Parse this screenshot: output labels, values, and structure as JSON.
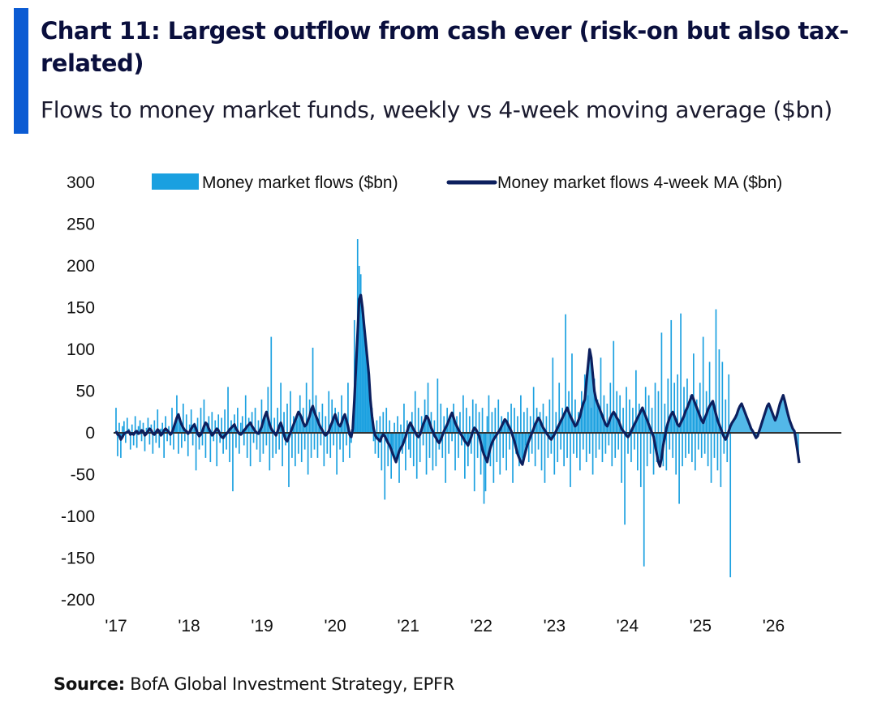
{
  "header": {
    "title": "Chart 11: Largest outflow from cash ever (risk-on but also tax-related)",
    "subtitle": "Flows to money market funds, weekly vs 4-week moving average ($bn)"
  },
  "footer": {
    "source_label": "Source:",
    "source_text": " BofA Global Investment Strategy, EPFR"
  },
  "colors": {
    "accent": "#0b5bd3",
    "bars": "#1aa0e0",
    "ma_line": "#0c1f5e",
    "zero_line": "#333333"
  },
  "chart_data": {
    "type": "bar",
    "legend_position": "top",
    "grid": false,
    "ylim": [
      -200,
      300
    ],
    "yticks": [
      300,
      250,
      200,
      150,
      100,
      50,
      0,
      -50,
      -100,
      -150,
      -200
    ],
    "xtick_labels": [
      "'17",
      "'18",
      "'19",
      "'20",
      "'21",
      "'22",
      "'23",
      "'24",
      "'25",
      "'26"
    ],
    "x_start": "2017-01",
    "frequency": "weekly",
    "series": [
      {
        "name": "Money market flows ($bn)",
        "kind": "bar",
        "values": [
          30,
          -28,
          12,
          -30,
          8,
          14,
          -12,
          18,
          5,
          -20,
          10,
          -15,
          20,
          -18,
          8,
          15,
          -10,
          12,
          -22,
          6,
          18,
          -14,
          10,
          -25,
          15,
          -12,
          28,
          -18,
          5,
          12,
          -30,
          20,
          -10,
          8,
          -15,
          30,
          -20,
          12,
          45,
          -25,
          15,
          -18,
          35,
          -10,
          22,
          -28,
          10,
          28,
          -15,
          12,
          -45,
          18,
          -20,
          30,
          -15,
          40,
          -30,
          12,
          20,
          -35,
          25,
          -10,
          15,
          -40,
          22,
          -12,
          18,
          -25,
          28,
          -20,
          55,
          -35,
          15,
          -70,
          22,
          -18,
          30,
          -25,
          12,
          20,
          -15,
          45,
          -30,
          18,
          -40,
          25,
          -12,
          30,
          -20,
          15,
          -35,
          40,
          -25,
          20,
          -15,
          55,
          -45,
          115,
          -30,
          18,
          -25,
          30,
          -20,
          60,
          -40,
          25,
          -15,
          35,
          -65,
          50,
          -30,
          20,
          -40,
          15,
          -25,
          45,
          -35,
          30,
          -20,
          60,
          -50,
          40,
          -30,
          102,
          -20,
          45,
          -30,
          25,
          -15,
          35,
          -40,
          20,
          -25,
          50,
          -30,
          40,
          -15,
          30,
          -50,
          25,
          -20,
          45,
          -35,
          20,
          -15,
          60,
          -30,
          -12,
          20,
          135,
          60,
          232,
          200,
          190,
          140,
          120,
          100,
          85,
          60,
          45,
          30,
          -10,
          -25,
          15,
          -30,
          20,
          -45,
          25,
          -80,
          30,
          -40,
          15,
          -55,
          -20,
          12,
          -35,
          20,
          -60,
          10,
          -25,
          35,
          -45,
          15,
          -20,
          -30,
          25,
          -40,
          50,
          -55,
          30,
          -35,
          20,
          -15,
          40,
          -50,
          60,
          -30,
          25,
          -45,
          15,
          -40,
          65,
          -20,
          35,
          -30,
          20,
          -60,
          30,
          -25,
          15,
          -10,
          35,
          -45,
          20,
          -30,
          25,
          -15,
          45,
          -55,
          30,
          -40,
          20,
          -25,
          40,
          -70,
          35,
          -30,
          25,
          -50,
          30,
          -85,
          -70,
          20,
          45,
          -40,
          25,
          -60,
          30,
          -35,
          40,
          -50,
          20,
          -30,
          15,
          -45,
          25,
          -20,
          35,
          -60,
          30,
          -25,
          20,
          -40,
          45,
          -30,
          25,
          -15,
          30,
          -35,
          20,
          -25,
          55,
          -40,
          30,
          -20,
          25,
          -45,
          35,
          -60,
          20,
          -30,
          40,
          -25,
          90,
          -50,
          25,
          -35,
          60,
          -20,
          30,
          -40,
          142,
          -30,
          50,
          -65,
          95,
          -25,
          40,
          -30,
          25,
          -45,
          50,
          -20,
          70,
          -35,
          45,
          -25,
          30,
          -50,
          65,
          -30,
          40,
          -20,
          90,
          -35,
          45,
          -25,
          35,
          -15,
          60,
          -40,
          110,
          -30,
          50,
          -20,
          45,
          -60,
          30,
          -110,
          55,
          -25,
          40,
          -35,
          30,
          -20,
          75,
          -45,
          35,
          -65,
          28,
          -160,
          55,
          -40,
          45,
          -25,
          30,
          -50,
          60,
          -35,
          50,
          -30,
          120,
          -40,
          35,
          -45,
          65,
          -20,
          135,
          -30,
          60,
          -50,
          70,
          -85,
          143,
          -40,
          55,
          -30,
          65,
          -25,
          45,
          -35,
          95,
          -45,
          40,
          -20,
          60,
          -30,
          115,
          -25,
          50,
          -40,
          85,
          -60,
          35,
          -30,
          148,
          -45,
          100,
          -65,
          85,
          -25,
          40,
          -35,
          70,
          -173
        ]
      },
      {
        "name": "Money market flows 4-week MA ($bn)",
        "kind": "line",
        "values": [
          2,
          -2,
          -3,
          -8,
          -5,
          -1,
          0,
          1,
          2,
          -2,
          -1,
          -2,
          1,
          2,
          -1,
          0,
          3,
          2,
          -3,
          -1,
          2,
          5,
          3,
          -1,
          -2,
          1,
          4,
          2,
          -3,
          -1,
          3,
          5,
          3,
          1,
          -2,
          0,
          6,
          12,
          18,
          22,
          15,
          10,
          6,
          3,
          2,
          -1,
          1,
          5,
          8,
          10,
          5,
          -1,
          -4,
          -2,
          2,
          8,
          12,
          10,
          5,
          1,
          -3,
          -1,
          2,
          5,
          3,
          -2,
          -5,
          -6,
          -3,
          -1,
          1,
          4,
          6,
          8,
          10,
          5,
          2,
          -1,
          -2,
          0,
          3,
          5,
          8,
          10,
          12,
          8,
          5,
          2,
          0,
          -1,
          3,
          7,
          14,
          20,
          25,
          18,
          10,
          5,
          2,
          0,
          -3,
          2,
          8,
          12,
          6,
          -2,
          -8,
          -10,
          -5,
          0,
          5,
          10,
          15,
          20,
          25,
          22,
          18,
          12,
          8,
          10,
          15,
          20,
          28,
          32,
          25,
          20,
          15,
          10,
          6,
          3,
          -1,
          -3,
          -1,
          2,
          8,
          12,
          18,
          22,
          15,
          10,
          8,
          12,
          18,
          22,
          15,
          8,
          -2,
          -5,
          5,
          40,
          80,
          120,
          160,
          165,
          150,
          130,
          110,
          90,
          70,
          40,
          20,
          5,
          -3,
          -6,
          -8,
          -10,
          -5,
          -2,
          -4,
          -8,
          -12,
          -15,
          -20,
          -25,
          -30,
          -35,
          -28,
          -22,
          -18,
          -15,
          -10,
          -5,
          2,
          8,
          12,
          8,
          4,
          1,
          -3,
          -5,
          -2,
          4,
          10,
          15,
          20,
          18,
          12,
          6,
          2,
          -3,
          -6,
          -10,
          -12,
          -8,
          -3,
          2,
          6,
          10,
          15,
          20,
          24,
          18,
          12,
          8,
          4,
          0,
          -3,
          -6,
          -10,
          -12,
          -15,
          -10,
          -5,
          2,
          6,
          4,
          0,
          -4,
          -12,
          -20,
          -26,
          -30,
          -35,
          -25,
          -18,
          -12,
          -8,
          -5,
          -2,
          1,
          4,
          8,
          12,
          16,
          14,
          10,
          6,
          2,
          -4,
          -10,
          -18,
          -25,
          -30,
          -35,
          -38,
          -30,
          -22,
          -15,
          -10,
          -5,
          0,
          5,
          10,
          14,
          18,
          15,
          10,
          6,
          3,
          0,
          -3,
          -6,
          -8,
          -5,
          -2,
          2,
          6,
          10,
          14,
          18,
          22,
          26,
          30,
          25,
          20,
          16,
          12,
          8,
          10,
          15,
          20,
          28,
          35,
          40,
          60,
          80,
          100,
          90,
          70,
          50,
          40,
          35,
          30,
          25,
          20,
          15,
          10,
          8,
          12,
          18,
          22,
          25,
          22,
          18,
          15,
          10,
          5,
          2,
          0,
          -3,
          -5,
          -2,
          2,
          6,
          10,
          14,
          18,
          22,
          26,
          30,
          25,
          20,
          15,
          10,
          5,
          0,
          -5,
          -15,
          -25,
          -35,
          -40,
          -30,
          -15,
          -5,
          5,
          12,
          18,
          22,
          25,
          20,
          15,
          10,
          8,
          12,
          16,
          20,
          26,
          30,
          35,
          40,
          45,
          40,
          35,
          30,
          25,
          20,
          15,
          12,
          18,
          22,
          28,
          32,
          35,
          38,
          30,
          22,
          15,
          10,
          5,
          0,
          -5,
          -8,
          -4,
          2,
          8,
          12,
          15,
          18,
          22,
          28,
          32,
          35,
          30,
          25,
          20,
          15,
          10,
          5,
          2,
          -2,
          -6,
          -4,
          2,
          8,
          14,
          20,
          26,
          32,
          35,
          30,
          25,
          20,
          15,
          20,
          28,
          35,
          40,
          45,
          38,
          30,
          22,
          15,
          10,
          5,
          2,
          -10,
          -22,
          -36
        ]
      }
    ]
  }
}
